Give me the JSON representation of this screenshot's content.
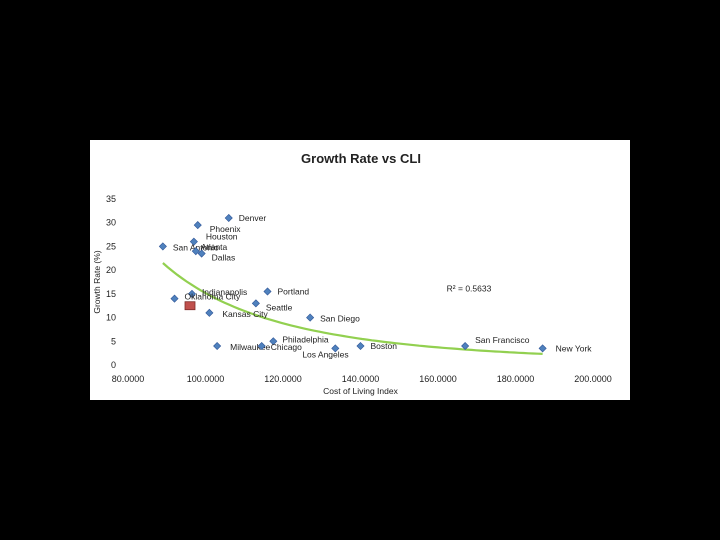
{
  "chart_data": {
    "type": "scatter",
    "title": "Growth Rate vs CLI",
    "xlabel": "Cost of Living Index",
    "ylabel": "Growth Rate (%)",
    "xlim": [
      80,
      200
    ],
    "ylim": [
      0,
      35
    ],
    "x_ticks": [
      "80.0000",
      "100.0000",
      "120.0000",
      "140.0000",
      "160.0000",
      "180.0000",
      "200.0000"
    ],
    "y_ticks": [
      "0",
      "5",
      "10",
      "15",
      "20",
      "25",
      "30",
      "35"
    ],
    "grid": false,
    "legend": "none",
    "trendline": {
      "type": "power",
      "annotation": "R² = 0.5633",
      "color": "#92d050"
    },
    "points": [
      {
        "name": "Denver",
        "x": 106,
        "y": 31
      },
      {
        "name": "Phoenix",
        "x": 98,
        "y": 29.5
      },
      {
        "name": "Houston",
        "x": 97,
        "y": 26
      },
      {
        "name": "San Antonio",
        "x": 89,
        "y": 25
      },
      {
        "name": "Atlanta",
        "x": 97.5,
        "y": 24
      },
      {
        "name": "Dallas",
        "x": 99,
        "y": 23.5
      },
      {
        "name": "Indianapolis",
        "x": 96.5,
        "y": 15
      },
      {
        "name": "Oklahoma City",
        "x": 92,
        "y": 14
      },
      {
        "name": "Portland",
        "x": 116,
        "y": 15.5
      },
      {
        "name": "Seattle",
        "x": 113,
        "y": 13
      },
      {
        "name": "Kansas City",
        "x": 101,
        "y": 11
      },
      {
        "name": "San Diego",
        "x": 127,
        "y": 10
      },
      {
        "name": "Milwaukee",
        "x": 103,
        "y": 4
      },
      {
        "name": "Philadelphia",
        "x": 117.5,
        "y": 5
      },
      {
        "name": "Chicago",
        "x": 114.5,
        "y": 4
      },
      {
        "name": "Los Angeles",
        "x": 133.5,
        "y": 3.5
      },
      {
        "name": "Boston",
        "x": 140,
        "y": 4
      },
      {
        "name": "San Francisco",
        "x": 167,
        "y": 4
      },
      {
        "name": "New York",
        "x": 187,
        "y": 3.5
      }
    ],
    "highlight_point": {
      "x": 96,
      "y": 12.5,
      "color": "#c0504d"
    },
    "marker_color": "#4f81bd"
  }
}
